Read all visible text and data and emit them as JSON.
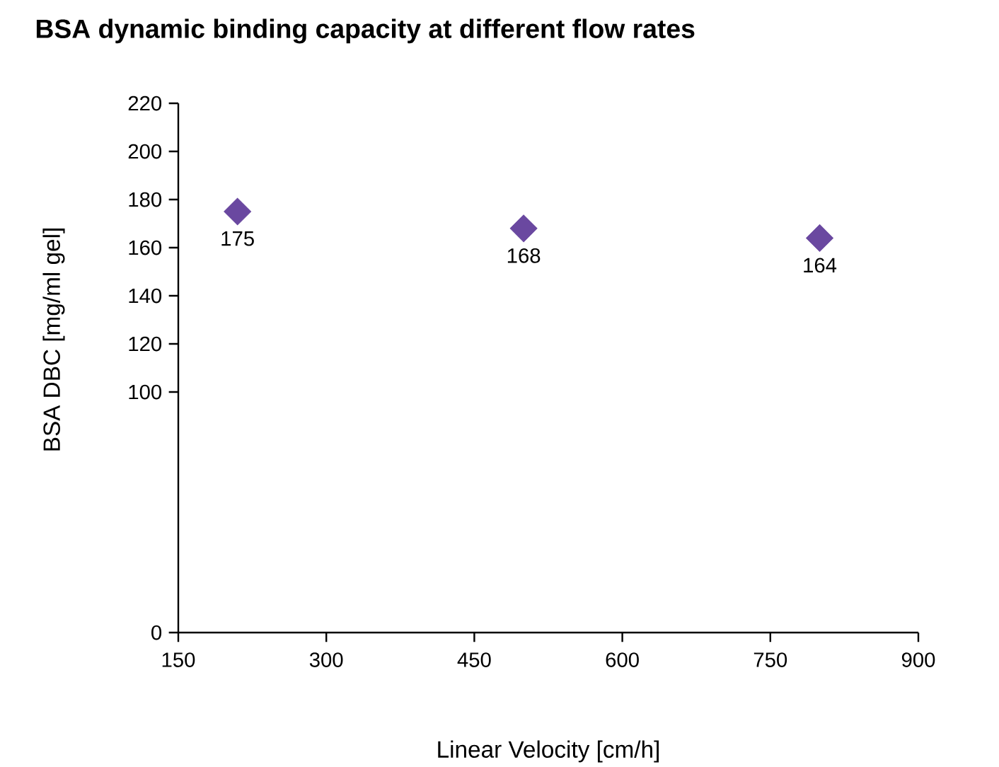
{
  "chart_data": {
    "type": "scatter",
    "title": "BSA dynamic binding capacity at different flow rates",
    "xlabel": "Linear Velocity [cm/h]",
    "ylabel": "BSA DBC [mg/ml gel]",
    "series": [
      {
        "color": "#6a48a0",
        "x": [
          210,
          500,
          800
        ],
        "values": [
          175,
          168,
          164
        ]
      }
    ],
    "marker": "diamond",
    "data_labels": true,
    "grid": false,
    "xlim": [
      150,
      900
    ],
    "xticks": [
      150,
      300,
      450,
      600,
      750,
      900
    ],
    "ylim": [
      0,
      220
    ],
    "yticks": [
      0,
      100,
      120,
      140,
      160,
      180,
      200,
      220
    ]
  }
}
